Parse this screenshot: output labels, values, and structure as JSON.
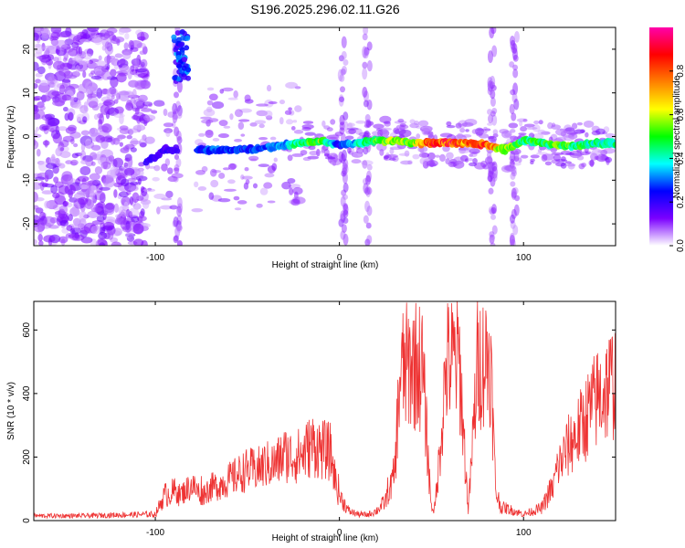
{
  "title": "S196.2025.296.02.11.G26",
  "chart_data": [
    {
      "type": "heatmap",
      "xlabel": "Height of straight line (km)",
      "ylabel": "Frequency (Hz)",
      "xlim": [
        -166,
        150
      ],
      "ylim": [
        -25,
        25
      ],
      "xticks": [
        -100,
        0,
        100
      ],
      "yticks": [
        -20,
        -10,
        0,
        10,
        20
      ],
      "colorbar": {
        "label": "Normalized spectral amplitude",
        "range": [
          0,
          1
        ],
        "ticks": [
          0.0,
          0.2,
          0.4,
          0.6,
          0.8
        ],
        "colormap": [
          "#ffffff",
          "#7b00ff",
          "#0000ff",
          "#00ffff",
          "#00ff00",
          "#ffff00",
          "#ff8000",
          "#ff0000",
          "#ff00aa"
        ]
      },
      "ridge": {
        "x": [
          -105,
          -95,
          -80,
          -70,
          -60,
          -50,
          -40,
          -30,
          -20,
          -10,
          0,
          10,
          20,
          30,
          40,
          50,
          60,
          70,
          80,
          90,
          100,
          110,
          120,
          130,
          140,
          150
        ],
        "frequency_hz": [
          -6,
          -3,
          -3,
          -3,
          -3,
          -3,
          -2.5,
          -2,
          -1.5,
          -1,
          -2,
          -1.5,
          -1,
          -1,
          -1.5,
          -1.5,
          -1.5,
          -1.5,
          -2,
          -3,
          -1,
          -1.5,
          -2,
          -2,
          -1.5,
          -1.5
        ],
        "amplitude": [
          0.2,
          0.2,
          0.25,
          0.3,
          0.3,
          0.28,
          0.3,
          0.35,
          0.5,
          0.6,
          0.25,
          0.4,
          0.55,
          0.6,
          0.6,
          0.85,
          0.9,
          0.8,
          0.85,
          0.6,
          0.5,
          0.5,
          0.55,
          0.5,
          0.45,
          0.45
        ]
      },
      "noise_region_x": [
        -166,
        -105
      ],
      "gaps_x": [
        [
          -108,
          -106
        ],
        [
          -88,
          -78
        ]
      ],
      "vertical_streaks_x": [
        -88,
        2,
        15,
        83,
        95
      ]
    },
    {
      "type": "line",
      "xlabel": "Height of straight line (km)",
      "ylabel": "SNR (10 * v/v)",
      "xlim": [
        -166,
        150
      ],
      "ylim": [
        0,
        690
      ],
      "xticks": [
        -100,
        0,
        100
      ],
      "yticks": [
        0,
        200,
        400,
        600
      ],
      "color": "#ee3333",
      "series": [
        {
          "x": [
            -166,
            -140,
            -120,
            -100,
            -95,
            -90,
            -85,
            -80,
            -75,
            -70,
            -65,
            -60,
            -55,
            -50,
            -45,
            -40,
            -35,
            -30,
            -25,
            -20,
            -15,
            -10,
            -5,
            0,
            5,
            10,
            15,
            20,
            25,
            30,
            33,
            40,
            45,
            50,
            52,
            58,
            60,
            65,
            70,
            75,
            78,
            82,
            85,
            88,
            90,
            95,
            100,
            105,
            110,
            115,
            118,
            125,
            130,
            135,
            140,
            145,
            150
          ],
          "y": [
            15,
            15,
            18,
            20,
            80,
            90,
            110,
            140,
            100,
            130,
            140,
            160,
            180,
            200,
            200,
            220,
            220,
            260,
            250,
            260,
            300,
            280,
            270,
            80,
            30,
            20,
            18,
            30,
            60,
            190,
            580,
            620,
            600,
            40,
            40,
            610,
            620,
            640,
            30,
            620,
            630,
            650,
            90,
            40,
            40,
            30,
            20,
            30,
            40,
            100,
            200,
            300,
            350,
            420,
            480,
            520,
            560
          ]
        }
      ]
    }
  ]
}
